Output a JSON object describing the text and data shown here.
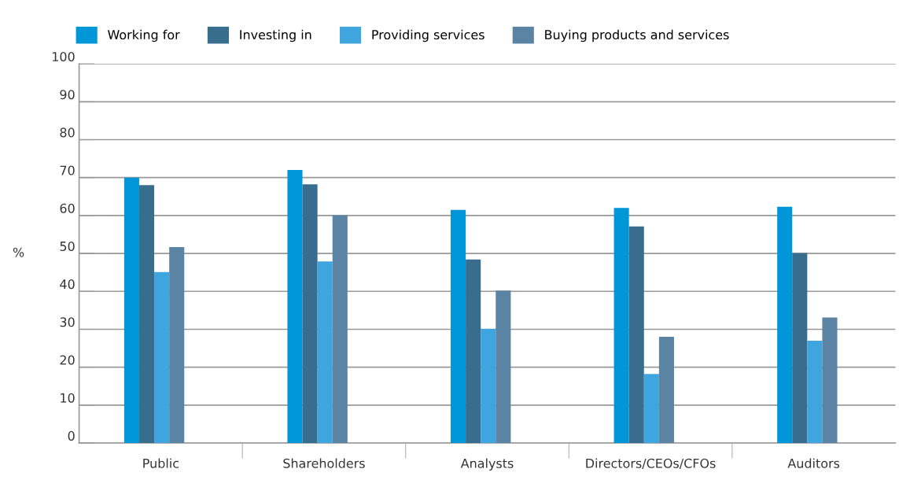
{
  "chart_data": {
    "type": "bar",
    "ylabel": "%",
    "categories": [
      "Public",
      "Shareholders",
      "Analysts",
      "Directors/CEOs/CFOs",
      "Auditors"
    ],
    "series": [
      {
        "name": "Working for",
        "color": "#0097d8",
        "values": [
          70,
          72,
          61.5,
          62,
          62.3
        ]
      },
      {
        "name": "Investing in",
        "color": "#386d8e",
        "values": [
          68,
          68.2,
          48.4,
          57.1,
          50.1
        ]
      },
      {
        "name": "Providing services",
        "color": "#3ea5de",
        "values": [
          45.1,
          47.9,
          30.1,
          18.2,
          27
        ]
      },
      {
        "name": "Buying products and services",
        "color": "#5b84a4",
        "values": [
          51.7,
          60.1,
          40.2,
          28,
          33.1
        ]
      }
    ],
    "ylim": [
      0,
      100
    ],
    "yticks": [
      0,
      10,
      20,
      30,
      40,
      50,
      60,
      70,
      80,
      90,
      100
    ],
    "grid": "y",
    "legend": "top left"
  }
}
